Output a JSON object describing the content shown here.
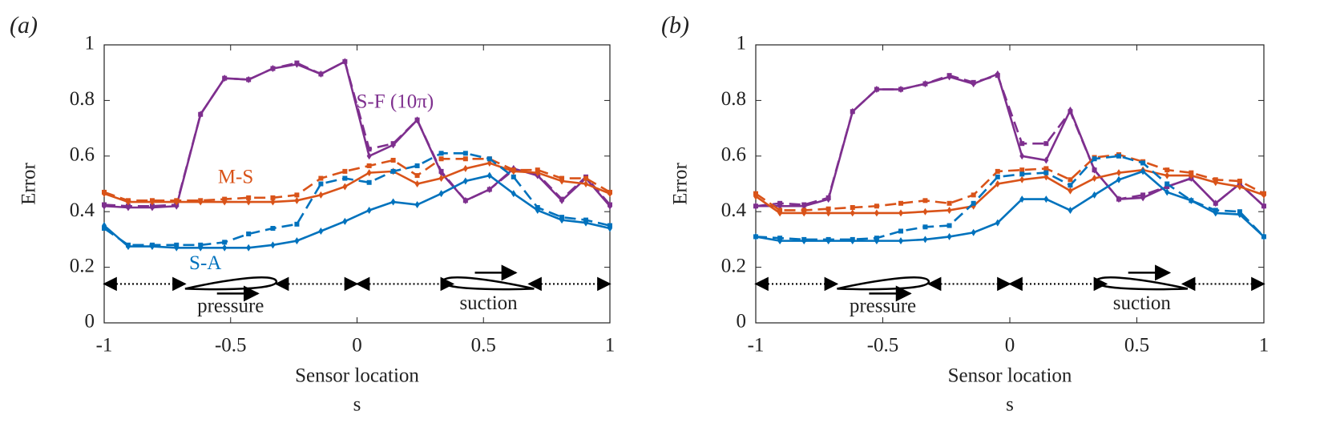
{
  "chart_data": [
    {
      "type": "line",
      "panel_label": "(a)",
      "ylabel": "Error",
      "xlabel": "Sensor location",
      "xlabel2": "s",
      "xlim": [
        -1,
        1
      ],
      "ylim": [
        0,
        1
      ],
      "xticks": [
        -1,
        -0.5,
        0,
        0.5,
        1
      ],
      "yticks": [
        0,
        0.2,
        0.4,
        0.6,
        0.8,
        1
      ],
      "annotations": [
        "S-F (10π)",
        "M-S",
        "S-A",
        "pressure",
        "suction"
      ],
      "x": [
        -1,
        -0.905,
        -0.81,
        -0.714,
        -0.619,
        -0.524,
        -0.429,
        -0.333,
        -0.238,
        -0.143,
        -0.048,
        0.048,
        0.143,
        0.238,
        0.333,
        0.429,
        0.524,
        0.619,
        0.714,
        0.81,
        0.905,
        1
      ],
      "series": [
        {
          "color": "#7e2f8e",
          "style": "solid",
          "values": [
            0.42,
            0.415,
            0.415,
            0.42,
            0.75,
            0.88,
            0.875,
            0.915,
            0.93,
            0.895,
            0.94,
            0.6,
            0.64,
            0.73,
            0.54,
            0.44,
            0.48,
            0.555,
            0.53,
            0.44,
            0.52,
            0.42
          ]
        },
        {
          "color": "#7e2f8e",
          "style": "dashed",
          "values": [
            0.425,
            0.42,
            0.42,
            0.425,
            0.75,
            0.88,
            0.875,
            0.915,
            0.935,
            0.895,
            0.94,
            0.625,
            0.645,
            0.73,
            0.545,
            0.44,
            0.48,
            0.55,
            0.535,
            0.445,
            0.525,
            0.425
          ]
        },
        {
          "color": "#d95319",
          "style": "solid",
          "values": [
            0.465,
            0.435,
            0.435,
            0.435,
            0.435,
            0.435,
            0.435,
            0.435,
            0.44,
            0.46,
            0.49,
            0.54,
            0.545,
            0.5,
            0.52,
            0.555,
            0.575,
            0.545,
            0.54,
            0.51,
            0.5,
            0.465
          ]
        },
        {
          "color": "#d95319",
          "style": "dashed",
          "values": [
            0.47,
            0.44,
            0.44,
            0.44,
            0.44,
            0.445,
            0.45,
            0.45,
            0.46,
            0.52,
            0.545,
            0.565,
            0.585,
            0.53,
            0.59,
            0.59,
            0.59,
            0.55,
            0.55,
            0.52,
            0.52,
            0.47
          ]
        },
        {
          "color": "#0072bd",
          "style": "solid",
          "values": [
            0.35,
            0.275,
            0.275,
            0.27,
            0.27,
            0.27,
            0.27,
            0.28,
            0.295,
            0.33,
            0.365,
            0.405,
            0.435,
            0.425,
            0.465,
            0.51,
            0.53,
            0.465,
            0.405,
            0.37,
            0.36,
            0.34
          ]
        },
        {
          "color": "#0072bd",
          "style": "dashed",
          "values": [
            0.34,
            0.28,
            0.28,
            0.28,
            0.28,
            0.29,
            0.32,
            0.34,
            0.355,
            0.5,
            0.52,
            0.505,
            0.545,
            0.565,
            0.61,
            0.61,
            0.59,
            0.525,
            0.415,
            0.38,
            0.37,
            0.35
          ]
        }
      ]
    },
    {
      "type": "line",
      "panel_label": "(b)",
      "ylabel": "Error",
      "xlabel": "Sensor location",
      "xlabel2": "s",
      "xlim": [
        -1,
        1
      ],
      "ylim": [
        0,
        1
      ],
      "xticks": [
        -1,
        -0.5,
        0,
        0.5,
        1
      ],
      "yticks": [
        0,
        0.2,
        0.4,
        0.6,
        0.8,
        1
      ],
      "annotations": [
        "pressure",
        "suction"
      ],
      "x": [
        -1,
        -0.905,
        -0.81,
        -0.714,
        -0.619,
        -0.524,
        -0.429,
        -0.333,
        -0.238,
        -0.143,
        -0.048,
        0.048,
        0.143,
        0.238,
        0.333,
        0.429,
        0.524,
        0.619,
        0.714,
        0.81,
        0.905,
        1
      ],
      "series": [
        {
          "color": "#7e2f8e",
          "style": "solid",
          "values": [
            0.42,
            0.42,
            0.42,
            0.445,
            0.76,
            0.84,
            0.84,
            0.86,
            0.885,
            0.86,
            0.895,
            0.6,
            0.585,
            0.765,
            0.55,
            0.445,
            0.45,
            0.49,
            0.52,
            0.43,
            0.5,
            0.42
          ]
        },
        {
          "color": "#7e2f8e",
          "style": "dashed",
          "values": [
            0.42,
            0.43,
            0.425,
            0.45,
            0.76,
            0.84,
            0.84,
            0.86,
            0.89,
            0.865,
            0.89,
            0.645,
            0.645,
            0.76,
            0.55,
            0.445,
            0.46,
            0.49,
            0.52,
            0.43,
            0.5,
            0.42
          ]
        },
        {
          "color": "#d95319",
          "style": "solid",
          "values": [
            0.455,
            0.395,
            0.395,
            0.395,
            0.395,
            0.395,
            0.395,
            0.4,
            0.405,
            0.42,
            0.5,
            0.515,
            0.525,
            0.475,
            0.52,
            0.54,
            0.55,
            0.53,
            0.53,
            0.505,
            0.49,
            0.46
          ]
        },
        {
          "color": "#d95319",
          "style": "dashed",
          "values": [
            0.465,
            0.405,
            0.405,
            0.41,
            0.415,
            0.42,
            0.43,
            0.44,
            0.43,
            0.46,
            0.545,
            0.55,
            0.555,
            0.515,
            0.595,
            0.605,
            0.58,
            0.55,
            0.54,
            0.515,
            0.51,
            0.465
          ]
        },
        {
          "color": "#0072bd",
          "style": "solid",
          "values": [
            0.31,
            0.295,
            0.295,
            0.295,
            0.295,
            0.295,
            0.295,
            0.3,
            0.31,
            0.325,
            0.36,
            0.445,
            0.445,
            0.405,
            0.46,
            0.515,
            0.545,
            0.47,
            0.44,
            0.395,
            0.39,
            0.31
          ]
        },
        {
          "color": "#0072bd",
          "style": "dashed",
          "values": [
            0.31,
            0.305,
            0.3,
            0.3,
            0.3,
            0.305,
            0.33,
            0.345,
            0.35,
            0.43,
            0.525,
            0.535,
            0.54,
            0.495,
            0.59,
            0.6,
            0.575,
            0.5,
            0.44,
            0.405,
            0.4,
            0.31
          ]
        }
      ]
    }
  ]
}
